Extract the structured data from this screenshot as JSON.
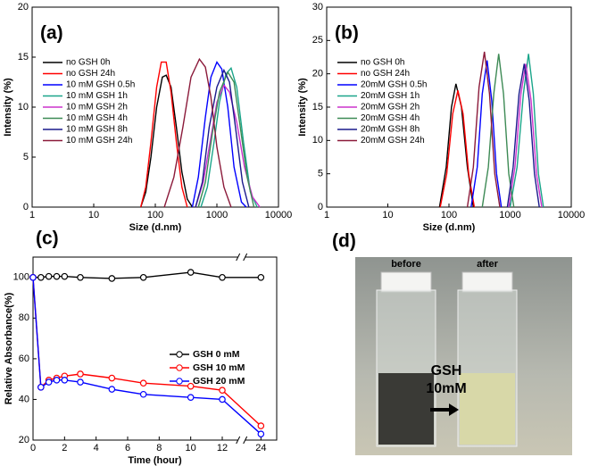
{
  "chart_data": [
    {
      "type": "line",
      "title": "(a)",
      "xlabel": "Size (d.nm)",
      "ylabel": "Intensity (%)",
      "xscale": "log",
      "xlim": [
        1,
        10000
      ],
      "xticks": [
        1,
        10,
        100,
        1000,
        10000
      ],
      "ylim": [
        0,
        20
      ],
      "yticks": [
        0,
        5,
        10,
        15,
        20
      ],
      "legend": "upper left",
      "series": [
        {
          "name": "no GSH 0h",
          "color": "#000000",
          "x": [
            58,
            70,
            85,
            105,
            130,
            150,
            180,
            220,
            270,
            330,
            400
          ],
          "values": [
            0,
            1.5,
            5,
            10,
            13,
            13.2,
            12,
            8,
            3.5,
            0.8,
            0
          ]
        },
        {
          "name": "no GSH 24h",
          "color": "#ff0000",
          "x": [
            58,
            70,
            85,
            105,
            125,
            150,
            180,
            220,
            270,
            330
          ],
          "values": [
            0,
            2,
            6.5,
            12,
            14.5,
            14.5,
            11.5,
            6.5,
            2,
            0
          ]
        },
        {
          "name": "10 mM GSH 0.5h",
          "color": "#0000ff",
          "x": [
            400,
            500,
            650,
            800,
            1000,
            1200,
            1500,
            1900,
            2500,
            3000
          ],
          "values": [
            0,
            3,
            9,
            13,
            14.5,
            13.8,
            10,
            4,
            0.5,
            0
          ]
        },
        {
          "name": "10 mM GSH 1h",
          "color": "#1aa58a",
          "x": [
            550,
            700,
            900,
            1100,
            1400,
            1700,
            2100,
            2700,
            3500,
            4500
          ],
          "values": [
            0,
            2,
            6.5,
            10.5,
            13.3,
            13.9,
            12,
            6.5,
            1.5,
            0
          ]
        },
        {
          "name": "10 mM GSH 2h",
          "color": "#cc33cc",
          "x": [
            450,
            600,
            800,
            1000,
            1300,
            1600,
            2100,
            2800,
            3800,
            5000
          ],
          "values": [
            0,
            2.5,
            7,
            10.5,
            12.2,
            11.5,
            8.5,
            4,
            1,
            0
          ]
        },
        {
          "name": "10 mM GSH 4h",
          "color": "#3d8a55",
          "x": [
            500,
            650,
            850,
            1100,
            1500,
            1900,
            2400,
            3100,
            4000
          ],
          "values": [
            0,
            2.5,
            7.5,
            11.5,
            13.5,
            12.5,
            8,
            3,
            0
          ]
        },
        {
          "name": "10 mM GSH 8h",
          "color": "#1a1a8c",
          "x": [
            450,
            580,
            750,
            1000,
            1300,
            1600,
            2000,
            2600,
            3300
          ],
          "values": [
            0,
            2.5,
            8,
            12,
            13.7,
            12.5,
            8,
            2.5,
            0
          ]
        },
        {
          "name": "10 mM GSH 24h",
          "color": "#8b1a3a",
          "x": [
            140,
            200,
            280,
            380,
            520,
            650,
            800,
            1000,
            1300,
            1700
          ],
          "values": [
            0,
            3,
            8,
            13,
            14.8,
            14,
            11,
            6,
            2,
            0
          ]
        }
      ]
    },
    {
      "type": "line",
      "title": "(b)",
      "xlabel": "Size (d.nm)",
      "ylabel": "Intensity (%)",
      "xscale": "log",
      "xlim": [
        1,
        10000
      ],
      "xticks": [
        1,
        10,
        100,
        1000,
        10000
      ],
      "ylim": [
        0,
        30
      ],
      "yticks": [
        0,
        5,
        10,
        15,
        20,
        25,
        30
      ],
      "legend": "upper left",
      "series": [
        {
          "name": "no GSH 0h",
          "color": "#000000",
          "x": [
            70,
            90,
            110,
            130,
            160,
            200,
            250
          ],
          "values": [
            0,
            6,
            15,
            18.5,
            15,
            6,
            0
          ]
        },
        {
          "name": "no GSH 24h",
          "color": "#ff0000",
          "x": [
            72,
            92,
            115,
            140,
            170,
            210,
            260
          ],
          "values": [
            0,
            5,
            14,
            17.5,
            14,
            5,
            0
          ]
        },
        {
          "name": "20mM GSH 0.5h",
          "color": "#0000ff",
          "x": [
            230,
            290,
            350,
            420,
            500,
            600,
            720
          ],
          "values": [
            0,
            6,
            17,
            22,
            16,
            5,
            0
          ]
        },
        {
          "name": "20mM GSH 1h",
          "color": "#1aa58a",
          "x": [
            1000,
            1300,
            1650,
            2000,
            2400,
            2900,
            3500
          ],
          "values": [
            0,
            6,
            17,
            23,
            17,
            5,
            0
          ]
        },
        {
          "name": "20mM GSH 2h",
          "color": "#cc33cc",
          "x": [
            950,
            1200,
            1500,
            1800,
            2200,
            2700,
            3300
          ],
          "values": [
            0,
            6,
            17,
            21.5,
            16,
            5,
            0
          ]
        },
        {
          "name": "20mM GSH 4h",
          "color": "#3d8a55",
          "x": [
            350,
            440,
            540,
            650,
            780,
            950,
            1150
          ],
          "values": [
            0,
            6,
            17,
            23,
            17,
            5,
            0
          ]
        },
        {
          "name": "20mM GSH 8h",
          "color": "#1a1a8c",
          "x": [
            900,
            1120,
            1400,
            1700,
            2050,
            2500,
            3000
          ],
          "values": [
            0,
            6,
            17,
            21.5,
            16,
            5,
            0
          ]
        },
        {
          "name": "20mM GSH 24h",
          "color": "#8b1a3a",
          "x": [
            200,
            250,
            310,
            380,
            460,
            560,
            680
          ],
          "values": [
            0,
            6,
            18,
            23.3,
            17,
            5,
            0
          ]
        }
      ]
    },
    {
      "type": "line",
      "title": "(c)",
      "xlabel": "Time (hour)",
      "ylabel": "Relative Absorbance(%)",
      "xlim": [
        0,
        25
      ],
      "x_break": [
        13,
        23
      ],
      "xticks": [
        0,
        2,
        4,
        6,
        8,
        10,
        12,
        24
      ],
      "ylim": [
        20,
        110
      ],
      "yticks": [
        20,
        40,
        60,
        80,
        100
      ],
      "legend": "center right",
      "x": [
        0,
        0.5,
        1,
        1.5,
        2,
        3,
        5,
        7,
        10,
        12,
        24
      ],
      "series": [
        {
          "name": "GSH 0 mM",
          "color": "#000000",
          "values": [
            100,
            100,
            100.5,
            100.5,
            100.5,
            100,
            99.5,
            100,
            102.5,
            100,
            100
          ]
        },
        {
          "name": "GSH 10 mM",
          "color": "#ff0000",
          "values": [
            100,
            46,
            49.5,
            50.5,
            51.5,
            52.5,
            50.5,
            48,
            46.5,
            44.5,
            27
          ]
        },
        {
          "name": "GSH 20 mM",
          "color": "#0000ff",
          "values": [
            100,
            46,
            48.5,
            49.5,
            49.5,
            48.5,
            45,
            42.5,
            41,
            40,
            23
          ]
        }
      ]
    }
  ],
  "photo": {
    "panel_label": "(d)",
    "before": "before",
    "after": "after",
    "reagent": "GSH",
    "concentration": "10mM"
  }
}
